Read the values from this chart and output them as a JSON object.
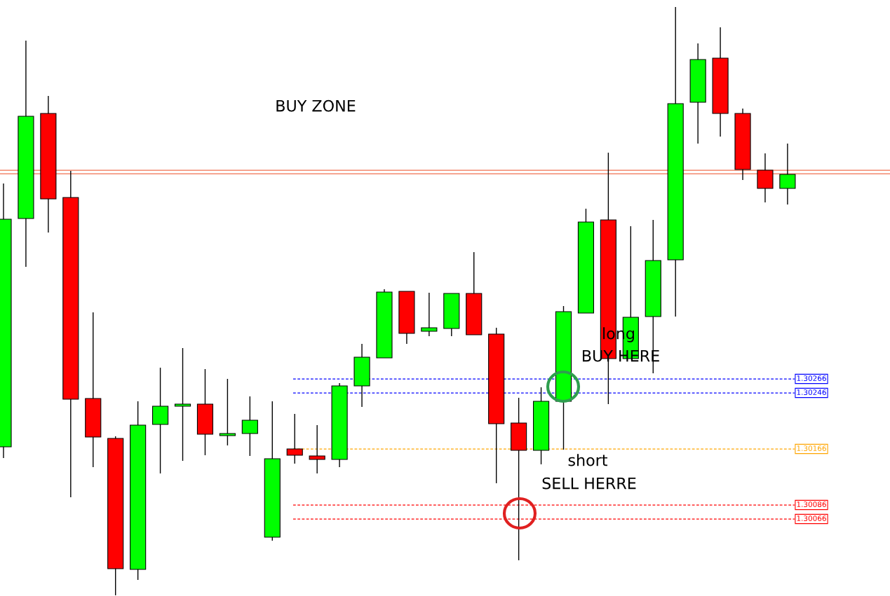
{
  "chart_data": {
    "type": "candlestick",
    "categories": [
      null,
      null,
      null,
      null,
      null,
      null,
      null,
      null,
      null,
      null,
      null,
      null,
      null,
      null,
      null,
      null,
      null,
      null,
      null,
      null,
      null,
      null,
      null,
      null,
      null,
      null,
      null,
      null,
      null,
      null,
      null,
      null,
      null,
      null,
      null,
      null
    ],
    "ohlc": [
      [
        1.30169,
        1.30545,
        1.30153,
        1.30494
      ],
      [
        1.30495,
        1.30749,
        1.30426,
        1.30641
      ],
      [
        1.30645,
        1.3067,
        1.30475,
        1.30523
      ],
      [
        1.30525,
        1.30563,
        1.30097,
        1.30237
      ],
      [
        1.30238,
        1.30361,
        1.3014,
        1.30183
      ],
      [
        1.30181,
        1.30184,
        1.29957,
        1.29995
      ],
      [
        1.29994,
        1.30234,
        1.29979,
        1.302
      ],
      [
        1.30201,
        1.30282,
        1.30131,
        1.30227
      ],
      [
        1.30227,
        1.3031,
        1.30149,
        1.3023
      ],
      [
        1.3023,
        1.3028,
        1.30157,
        1.30187
      ],
      [
        1.30185,
        1.30266,
        1.30171,
        1.30188
      ],
      [
        1.30188,
        1.30241,
        1.30156,
        1.30207
      ],
      [
        1.3004,
        1.30234,
        1.30035,
        1.30152
      ],
      [
        1.30166,
        1.30216,
        1.30145,
        1.30157
      ],
      [
        1.30156,
        1.302,
        1.30131,
        1.30151
      ],
      [
        1.30151,
        1.3026,
        1.3014,
        1.30256
      ],
      [
        1.30256,
        1.30316,
        1.30226,
        1.30297
      ],
      [
        1.30296,
        1.30394,
        1.30296,
        1.3039
      ],
      [
        1.30391,
        1.30391,
        1.30316,
        1.30331
      ],
      [
        1.30334,
        1.30389,
        1.30327,
        1.30339
      ],
      [
        1.30338,
        1.30388,
        1.30327,
        1.30388
      ],
      [
        1.30388,
        1.30447,
        1.30329,
        1.30329
      ],
      [
        1.3033,
        1.30339,
        1.30117,
        1.30202
      ],
      [
        1.30203,
        1.30239,
        1.30007,
        1.30164
      ],
      [
        1.30164,
        1.30254,
        1.30144,
        1.30234
      ],
      [
        1.30234,
        1.3037,
        1.30165,
        1.30362
      ],
      [
        1.3036,
        1.30509,
        1.3036,
        1.3049
      ],
      [
        1.30493,
        1.30589,
        1.3023,
        1.30295
      ],
      [
        1.30295,
        1.30484,
        1.30295,
        1.30354
      ],
      [
        1.30355,
        1.30493,
        1.30274,
        1.30435
      ],
      [
        1.30436,
        1.30797,
        1.30355,
        1.30659
      ],
      [
        1.30661,
        1.30745,
        1.30602,
        1.30722
      ],
      [
        1.30724,
        1.30768,
        1.30612,
        1.30645
      ],
      [
        1.30645,
        1.30652,
        1.3055,
        1.30565
      ],
      [
        1.30564,
        1.30588,
        1.30518,
        1.30538
      ],
      [
        1.30538,
        1.30602,
        1.30515,
        1.30558
      ]
    ],
    "colors": [
      "#00ff00",
      "#00ff00",
      "#ff0000",
      "#ff0000",
      "#ff0000",
      "#ff0000",
      "#00ff00",
      "#00ff00",
      "#00ff00",
      "#ff0000",
      "#00ff00",
      "#00ff00",
      "#00ff00",
      "#ff0000",
      "#ff0000",
      "#00ff00",
      "#00ff00",
      "#00ff00",
      "#ff0000",
      "#00ff00",
      "#00ff00",
      "#ff0000",
      "#ff0000",
      "#ff0000",
      "#00ff00",
      "#00ff00",
      "#00ff00",
      "#ff0000",
      "#00ff00",
      "#00ff00",
      "#00ff00",
      "#00ff00",
      "#ff0000",
      "#ff0000",
      "#ff0000",
      "#00ff00"
    ],
    "ylim": [
      1.29956,
      1.30807
    ],
    "grid": false,
    "ref_lines": [
      {
        "axis": "y",
        "value": 1.30564,
        "color": "#f07050",
        "line_style": "solid"
      },
      {
        "axis": "y",
        "value": 1.30559,
        "color": "#f07050",
        "line_style": "solid"
      },
      {
        "axis": "y",
        "value": 1.30266,
        "label": "1.30266",
        "color": "#0000ff",
        "line_style": "dashed"
      },
      {
        "axis": "y",
        "value": 1.30246,
        "label": "1.30246",
        "color": "#0000ff",
        "line_style": "dashed"
      },
      {
        "axis": "y",
        "value": 1.30166,
        "label": "1.30166",
        "color": "#ffa500",
        "line_style": "dashed"
      },
      {
        "axis": "y",
        "value": 1.30086,
        "label": "1.30086",
        "color": "#ff0000",
        "line_style": "dashed"
      },
      {
        "axis": "y",
        "value": 1.30066,
        "label": "1.30066",
        "color": "#ff0000",
        "line_style": "dashed"
      }
    ],
    "annotations": [
      "BUY ZONE",
      "long",
      "BUY HERE",
      "short",
      "SELL HERRE"
    ]
  }
}
